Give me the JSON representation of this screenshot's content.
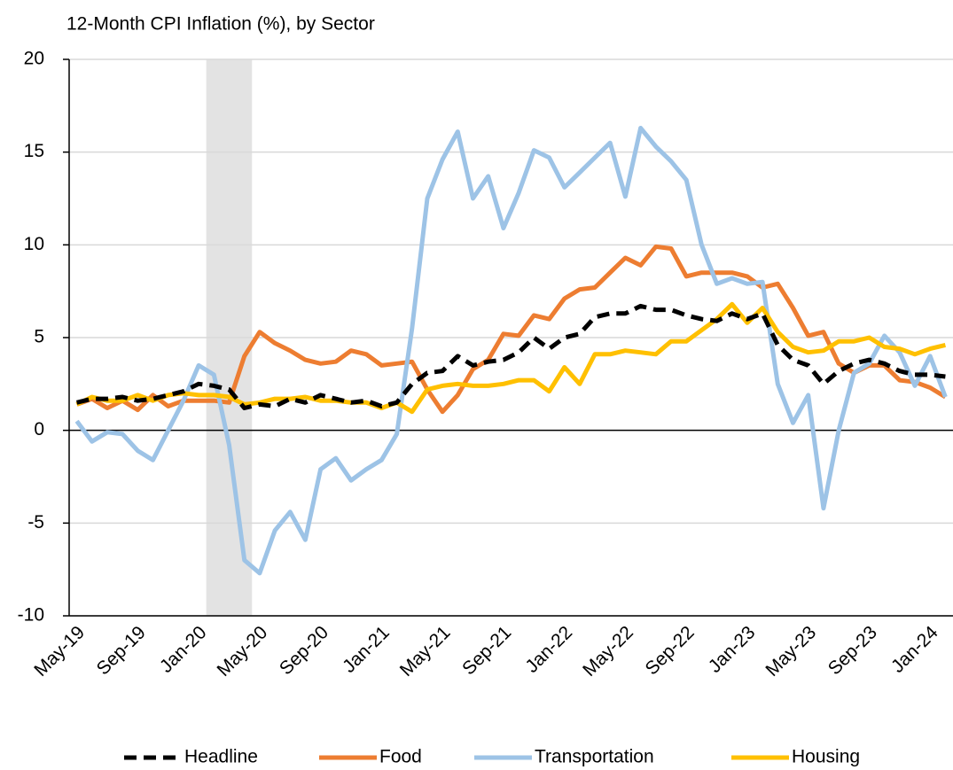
{
  "chart_data": {
    "type": "line",
    "title": "12-Month CPI Inflation (%), by Sector",
    "categories": [
      "May-19",
      null,
      null,
      null,
      "Sep-19",
      null,
      null,
      null,
      "Jan-20",
      null,
      null,
      null,
      "May-20",
      null,
      null,
      null,
      "Sep-20",
      null,
      null,
      null,
      "Jan-21",
      null,
      null,
      null,
      "May-21",
      null,
      null,
      null,
      "Sep-21",
      null,
      null,
      null,
      "Jan-22",
      null,
      null,
      null,
      "May-22",
      null,
      null,
      null,
      "Sep-22",
      null,
      null,
      null,
      "Jan-23",
      null,
      null,
      null,
      "May-23",
      null,
      null,
      null,
      "Sep-23",
      null,
      null,
      null,
      "Jan-24",
      null
    ],
    "series": [
      {
        "name": "Headline",
        "color": "#000000",
        "dashed": true,
        "values": [
          1.5,
          1.7,
          1.7,
          1.8,
          1.6,
          1.7,
          1.9,
          2.1,
          2.5,
          2.4,
          2.2,
          1.2,
          1.4,
          1.3,
          1.7,
          1.5,
          1.9,
          1.7,
          1.5,
          1.6,
          1.3,
          1.5,
          2.5,
          3.1,
          3.2,
          4.0,
          3.5,
          3.7,
          3.8,
          4.2,
          5.0,
          4.4,
          5.0,
          5.2,
          6.1,
          6.3,
          6.3,
          6.7,
          6.5,
          6.5,
          6.2,
          6.0,
          5.9,
          6.3,
          6.0,
          6.3,
          4.6,
          3.8,
          3.5,
          2.5,
          3.2,
          3.6,
          3.8,
          3.6,
          3.2,
          3.0,
          3.0,
          2.9
        ]
      },
      {
        "name": "Food",
        "color": "#ed7d31",
        "dashed": false,
        "values": [
          1.4,
          1.7,
          1.2,
          1.6,
          1.1,
          1.9,
          1.3,
          1.6,
          1.6,
          1.6,
          1.5,
          4.0,
          5.3,
          4.7,
          4.3,
          3.8,
          3.6,
          3.7,
          4.3,
          4.1,
          3.5,
          3.6,
          3.7,
          2.2,
          1.0,
          1.9,
          3.3,
          3.8,
          5.2,
          5.1,
          6.2,
          6.0,
          7.1,
          7.6,
          7.7,
          8.5,
          9.3,
          8.9,
          9.9,
          9.8,
          8.3,
          8.5,
          8.5,
          8.5,
          8.3,
          7.7,
          7.9,
          6.6,
          5.1,
          5.3,
          3.6,
          3.1,
          3.5,
          3.5,
          2.7,
          2.6,
          2.3,
          1.8
        ]
      },
      {
        "name": "Transportation",
        "color": "#9dc3e6",
        "dashed": false,
        "values": [
          0.5,
          -0.6,
          -0.1,
          -0.2,
          -1.1,
          -1.6,
          0,
          1.6,
          3.5,
          3.0,
          -0.8,
          -7.0,
          -7.7,
          -5.4,
          -4.4,
          -5.9,
          -2.1,
          -1.5,
          -2.7,
          -2.1,
          -1.6,
          -0.2,
          5.5,
          12.5,
          14.6,
          16.1,
          12.5,
          13.7,
          10.9,
          12.8,
          15.1,
          14.7,
          13.1,
          13.9,
          14.7,
          15.5,
          12.6,
          16.3,
          15.3,
          14.5,
          13.5,
          10.0,
          7.9,
          8.2,
          7.9,
          8.0,
          2.5,
          0.4,
          1.9,
          -4.2,
          0,
          3.1,
          3.6,
          5.1,
          4.2,
          2.4,
          4.0,
          1.8
        ]
      },
      {
        "name": "Housing",
        "color": "#ffc000",
        "dashed": false,
        "values": [
          1.4,
          1.8,
          1.6,
          1.6,
          1.9,
          1.6,
          1.9,
          2.0,
          1.9,
          1.9,
          1.8,
          1.4,
          1.5,
          1.7,
          1.7,
          1.8,
          1.6,
          1.6,
          1.5,
          1.5,
          1.2,
          1.5,
          1.0,
          2.2,
          2.4,
          2.5,
          2.4,
          2.4,
          2.5,
          2.7,
          2.7,
          2.1,
          3.4,
          2.5,
          4.1,
          4.1,
          4.3,
          4.2,
          4.1,
          4.8,
          4.8,
          5.4,
          6.0,
          6.8,
          5.8,
          6.6,
          5.3,
          4.5,
          4.2,
          4.3,
          4.8,
          4.8,
          5.0,
          4.5,
          4.4,
          4.1,
          4.4,
          4.6
        ]
      }
    ],
    "ylim": [
      -10,
      20
    ],
    "yticks": [
      -10,
      -5,
      0,
      5,
      10,
      15,
      20
    ],
    "grid": true,
    "shaded_categories": [
      9,
      11
    ],
    "shade_color": "#e3e3e3",
    "legend": "bottom"
  }
}
